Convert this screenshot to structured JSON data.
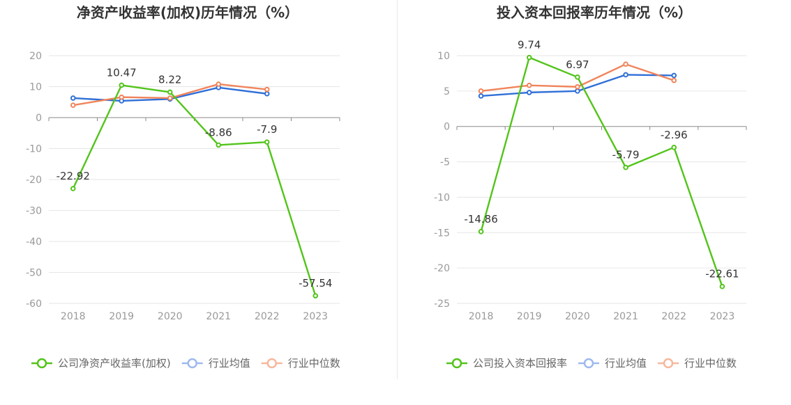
{
  "charts": [
    {
      "chart_data": {
        "type": "line",
        "title": "净资产收益率(加权)历年情况（%）",
        "categories": [
          "2018",
          "2019",
          "2020",
          "2021",
          "2022",
          "2023"
        ],
        "ylim": [
          -60,
          20
        ],
        "yticks": [
          20,
          10,
          0,
          -10,
          -20,
          -30,
          -40,
          -50,
          -60
        ],
        "grid": true,
        "legend_position": "bottom",
        "series": [
          {
            "name": "公司净资产收益率(加权)",
            "color": "#52c41a",
            "values": [
              -22.92,
              10.47,
              8.22,
              -8.86,
              -7.9,
              -57.54
            ],
            "labels": [
              "-22.92",
              "10.47",
              "8.22",
              "-8.86",
              "-7.9",
              "-57.54"
            ]
          },
          {
            "name": "行业均值",
            "color": "#2f6fd8",
            "values": [
              6.3,
              5.4,
              6.0,
              9.7,
              7.7,
              null
            ]
          },
          {
            "name": "行业中位数",
            "color": "#f0845b",
            "values": [
              4.0,
              6.6,
              6.3,
              10.8,
              9.1,
              null
            ]
          }
        ]
      }
    },
    {
      "chart_data": {
        "type": "line",
        "title": "投入资本回报率历年情况（%）",
        "categories": [
          "2018",
          "2019",
          "2020",
          "2021",
          "2022",
          "2023"
        ],
        "ylim": [
          -25,
          10
        ],
        "yticks": [
          10,
          5,
          0,
          -5,
          -10,
          -15,
          -20,
          -25
        ],
        "grid": true,
        "legend_position": "bottom",
        "series": [
          {
            "name": "公司投入资本回报率",
            "color": "#52c41a",
            "values": [
              -14.86,
              9.74,
              6.97,
              -5.79,
              -2.96,
              -22.61
            ],
            "labels": [
              "-14.86",
              "9.74",
              "6.97",
              "-5.79",
              "-2.96",
              "-22.61"
            ]
          },
          {
            "name": "行业均值",
            "color": "#2f6fd8",
            "values": [
              4.3,
              4.8,
              5.0,
              7.3,
              7.2,
              null
            ]
          },
          {
            "name": "行业中位数",
            "color": "#f0845b",
            "values": [
              5.0,
              5.8,
              5.6,
              8.8,
              6.5,
              null
            ]
          }
        ]
      }
    }
  ],
  "legend_colors": {
    "公司": "#52c41a",
    "行业均值": "#9fb9ef",
    "行业中位数": "#f7b79d"
  },
  "axis_color": "#888888",
  "grid_color": "#e6e6e6"
}
